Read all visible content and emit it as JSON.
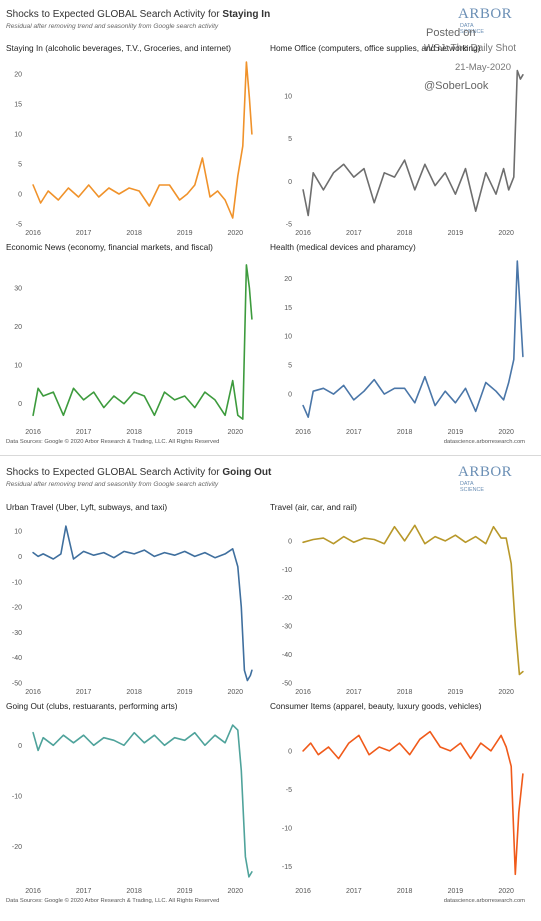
{
  "sections": [
    {
      "title_prefix": "Shocks to Expected GLOBAL Search Activity for ",
      "title_emphasis": "Staying In",
      "subtitle": "Residual after removing trend and seasonlity from Google search activity",
      "logo_main": "ARBOR",
      "logo_sub_1": "DATA",
      "logo_sub_2": "SCIENCE",
      "footer_left": "Data Sources: Google © 2020 Arbor Research & Trading, LLC. All Rights Reserved",
      "footer_right": "datascience.arborresearch.com"
    },
    {
      "title_prefix": "Shocks to Expected GLOBAL Search Activity for ",
      "title_emphasis": "Going Out",
      "subtitle": "Residual after removing trend and seasonlity from Google search activity",
      "logo_main": "ARBOR",
      "logo_sub_1": "DATA",
      "logo_sub_2": "SCIENCE",
      "footer_left": "Data Sources: Google © 2020 Arbor Research & Trading, LLC. All Rights Reserved",
      "footer_right": "datascience.arborresearch.com"
    }
  ],
  "overlay": {
    "posted_on": "Posted on",
    "site": "WSJ: The Daily Shot",
    "date": "21-May-2020",
    "handle": "@SoberLook"
  },
  "chart_data": [
    {
      "type": "line",
      "title": "Staying In (alcoholic beverages, T.V., Groceries, and internet)",
      "color": "#f0922a",
      "ylim": [
        -5,
        22
      ],
      "yticks": [
        -5,
        0,
        5,
        10,
        15,
        20
      ],
      "xticks": [
        "2016",
        "2017",
        "2018",
        "2019",
        "2020"
      ],
      "x": [
        2016.0,
        2016.15,
        2016.3,
        2016.5,
        2016.7,
        2016.9,
        2017.1,
        2017.3,
        2017.5,
        2017.7,
        2017.9,
        2018.1,
        2018.3,
        2018.5,
        2018.7,
        2018.9,
        2019.05,
        2019.2,
        2019.35,
        2019.5,
        2019.65,
        2019.8,
        2019.95,
        2020.05,
        2020.15,
        2020.22,
        2020.28,
        2020.33
      ],
      "values": [
        1.5,
        -1.5,
        0.5,
        -1.0,
        1.0,
        -0.5,
        1.5,
        -0.5,
        1.0,
        0.0,
        1.0,
        0.5,
        -2.0,
        1.5,
        1.5,
        -1.0,
        0.0,
        1.5,
        6.0,
        -0.5,
        0.5,
        -1.0,
        -4.0,
        3.0,
        8.0,
        22.0,
        16.0,
        10.0
      ]
    },
    {
      "type": "line",
      "title": "Home Office (computers, office supplies, and networking)",
      "color": "#6e6e6e",
      "ylim": [
        -5,
        14
      ],
      "yticks": [
        -5,
        0,
        5,
        10
      ],
      "xticks": [
        "2016",
        "2017",
        "2018",
        "2019",
        "2020"
      ],
      "x": [
        2016.0,
        2016.1,
        2016.2,
        2016.4,
        2016.6,
        2016.8,
        2017.0,
        2017.2,
        2017.4,
        2017.6,
        2017.8,
        2018.0,
        2018.2,
        2018.4,
        2018.6,
        2018.8,
        2019.0,
        2019.2,
        2019.4,
        2019.6,
        2019.8,
        2019.95,
        2020.05,
        2020.15,
        2020.22,
        2020.28,
        2020.33
      ],
      "values": [
        -1.0,
        -4.0,
        1.0,
        -1.0,
        1.0,
        2.0,
        0.5,
        1.5,
        -2.5,
        1.0,
        0.5,
        2.5,
        -1.0,
        2.0,
        -0.5,
        1.0,
        -1.5,
        1.5,
        -3.5,
        1.0,
        -1.5,
        1.5,
        -1.0,
        0.5,
        13.0,
        12.0,
        12.5
      ]
    },
    {
      "type": "line",
      "title": "Economic News (economy, financial markets, and fiscal)",
      "color": "#3d9b3d",
      "ylim": [
        -5,
        37
      ],
      "yticks": [
        0,
        10,
        20,
        30
      ],
      "xticks": [
        "2016",
        "2017",
        "2018",
        "2019",
        "2020"
      ],
      "x": [
        2016.0,
        2016.1,
        2016.2,
        2016.4,
        2016.6,
        2016.8,
        2017.0,
        2017.2,
        2017.4,
        2017.6,
        2017.8,
        2018.0,
        2018.2,
        2018.4,
        2018.6,
        2018.8,
        2019.0,
        2019.2,
        2019.4,
        2019.6,
        2019.8,
        2019.95,
        2020.05,
        2020.15,
        2020.22,
        2020.28,
        2020.33
      ],
      "values": [
        -3.0,
        4.0,
        2.0,
        3.0,
        -3.0,
        4.0,
        1.0,
        3.0,
        -1.0,
        2.0,
        0.0,
        3.0,
        2.0,
        -3.0,
        3.0,
        1.0,
        2.0,
        -1.0,
        3.0,
        1.0,
        -3.0,
        6.0,
        -3.0,
        -4.0,
        36.0,
        30.0,
        22.0
      ]
    },
    {
      "type": "line",
      "title": "Health (medical devices and pharamcy)",
      "color": "#4a76a8",
      "ylim": [
        -5,
        23
      ],
      "yticks": [
        0,
        5,
        10,
        15,
        20
      ],
      "xticks": [
        "2016",
        "2017",
        "2018",
        "2019",
        "2020"
      ],
      "x": [
        2016.0,
        2016.1,
        2016.2,
        2016.4,
        2016.6,
        2016.8,
        2017.0,
        2017.2,
        2017.4,
        2017.6,
        2017.8,
        2018.0,
        2018.2,
        2018.4,
        2018.6,
        2018.8,
        2019.0,
        2019.2,
        2019.4,
        2019.6,
        2019.8,
        2019.95,
        2020.05,
        2020.15,
        2020.22,
        2020.28,
        2020.33
      ],
      "values": [
        -2.0,
        -4.0,
        0.5,
        1.0,
        0.0,
        1.5,
        -1.0,
        0.5,
        2.5,
        0.0,
        1.0,
        1.0,
        -1.5,
        3.0,
        -2.0,
        0.5,
        -1.5,
        1.0,
        -3.0,
        2.0,
        0.5,
        -1.0,
        2.0,
        6.0,
        23.0,
        14.0,
        6.5
      ]
    },
    {
      "type": "line",
      "title": "Urban Travel (Uber, Lyft, subways, and taxi)",
      "color": "#3f6f9e",
      "ylim": [
        -50,
        14
      ],
      "yticks": [
        -50,
        -40,
        -30,
        -20,
        -10,
        0,
        10
      ],
      "xticks": [
        "2016",
        "2017",
        "2018",
        "2019",
        "2020"
      ],
      "x": [
        2016.0,
        2016.1,
        2016.2,
        2016.4,
        2016.55,
        2016.65,
        2016.8,
        2017.0,
        2017.2,
        2017.4,
        2017.6,
        2017.8,
        2018.0,
        2018.2,
        2018.4,
        2018.6,
        2018.8,
        2019.0,
        2019.2,
        2019.4,
        2019.6,
        2019.8,
        2019.95,
        2020.05,
        2020.12,
        2020.18,
        2020.24,
        2020.3,
        2020.33
      ],
      "values": [
        1.5,
        0.0,
        1.0,
        -1.0,
        1.0,
        12.0,
        -1.0,
        2.0,
        0.5,
        1.5,
        -0.5,
        2.0,
        1.0,
        2.5,
        0.0,
        1.5,
        0.5,
        2.0,
        0.0,
        1.5,
        -0.5,
        1.0,
        3.0,
        -4.0,
        -20.0,
        -45.0,
        -49.0,
        -47.0,
        -45.0
      ]
    },
    {
      "type": "line",
      "title": "Travel (air, car, and rail)",
      "color": "#b8982a",
      "ylim": [
        -50,
        7
      ],
      "yticks": [
        -50,
        -40,
        -30,
        -20,
        -10,
        0
      ],
      "xticks": [
        "2016",
        "2017",
        "2018",
        "2019",
        "2020"
      ],
      "x": [
        2016.0,
        2016.2,
        2016.4,
        2016.6,
        2016.8,
        2017.0,
        2017.2,
        2017.4,
        2017.6,
        2017.8,
        2018.0,
        2018.2,
        2018.4,
        2018.6,
        2018.8,
        2019.0,
        2019.2,
        2019.4,
        2019.6,
        2019.75,
        2019.9,
        2020.0,
        2020.1,
        2020.18,
        2020.26,
        2020.33
      ],
      "values": [
        -0.5,
        0.5,
        1.0,
        -1.0,
        1.5,
        -0.5,
        1.0,
        0.5,
        -1.0,
        5.0,
        0.0,
        5.5,
        -1.0,
        1.5,
        0.0,
        2.0,
        -0.5,
        1.5,
        -1.0,
        5.0,
        1.0,
        1.0,
        -8.0,
        -30.0,
        -47.0,
        -46.0
      ]
    },
    {
      "type": "line",
      "title": "Going Out (clubs, restuarants, performing arts)",
      "color": "#4fa39b",
      "ylim": [
        -27,
        5
      ],
      "yticks": [
        -20,
        -10,
        0
      ],
      "xticks": [
        "2016",
        "2017",
        "2018",
        "2019",
        "2020"
      ],
      "x": [
        2016.0,
        2016.1,
        2016.2,
        2016.4,
        2016.6,
        2016.8,
        2017.0,
        2017.2,
        2017.4,
        2017.6,
        2017.8,
        2018.0,
        2018.2,
        2018.4,
        2018.6,
        2018.8,
        2019.0,
        2019.2,
        2019.4,
        2019.6,
        2019.8,
        2019.95,
        2020.05,
        2020.12,
        2020.2,
        2020.27,
        2020.33
      ],
      "values": [
        2.5,
        -1.0,
        1.5,
        0.0,
        2.0,
        0.5,
        2.0,
        0.0,
        1.5,
        1.0,
        0.0,
        2.5,
        0.5,
        2.0,
        0.0,
        1.5,
        1.0,
        2.5,
        0.0,
        2.0,
        0.5,
        4.0,
        3.0,
        -5.0,
        -22.0,
        -26.0,
        -25.0
      ]
    },
    {
      "type": "line",
      "title": "Consumer Items (apparel, beauty, luxury goods, vehicles)",
      "color": "#f05a1a",
      "ylim": [
        -17,
        4
      ],
      "yticks": [
        -15,
        -10,
        -5,
        0
      ],
      "xticks": [
        "2016",
        "2017",
        "2018",
        "2019",
        "2020"
      ],
      "x": [
        2016.0,
        2016.15,
        2016.3,
        2016.5,
        2016.7,
        2016.9,
        2017.1,
        2017.3,
        2017.5,
        2017.7,
        2017.9,
        2018.1,
        2018.3,
        2018.5,
        2018.7,
        2018.9,
        2019.1,
        2019.3,
        2019.5,
        2019.7,
        2019.9,
        2020.0,
        2020.1,
        2020.18,
        2020.25,
        2020.33
      ],
      "values": [
        0.0,
        1.0,
        -0.5,
        0.5,
        -1.0,
        1.0,
        2.0,
        -0.5,
        0.5,
        0.0,
        1.0,
        -0.5,
        1.5,
        2.5,
        0.5,
        0.0,
        1.0,
        -1.0,
        1.0,
        0.0,
        2.0,
        0.5,
        -2.0,
        -16.0,
        -8.0,
        -3.0
      ]
    }
  ]
}
